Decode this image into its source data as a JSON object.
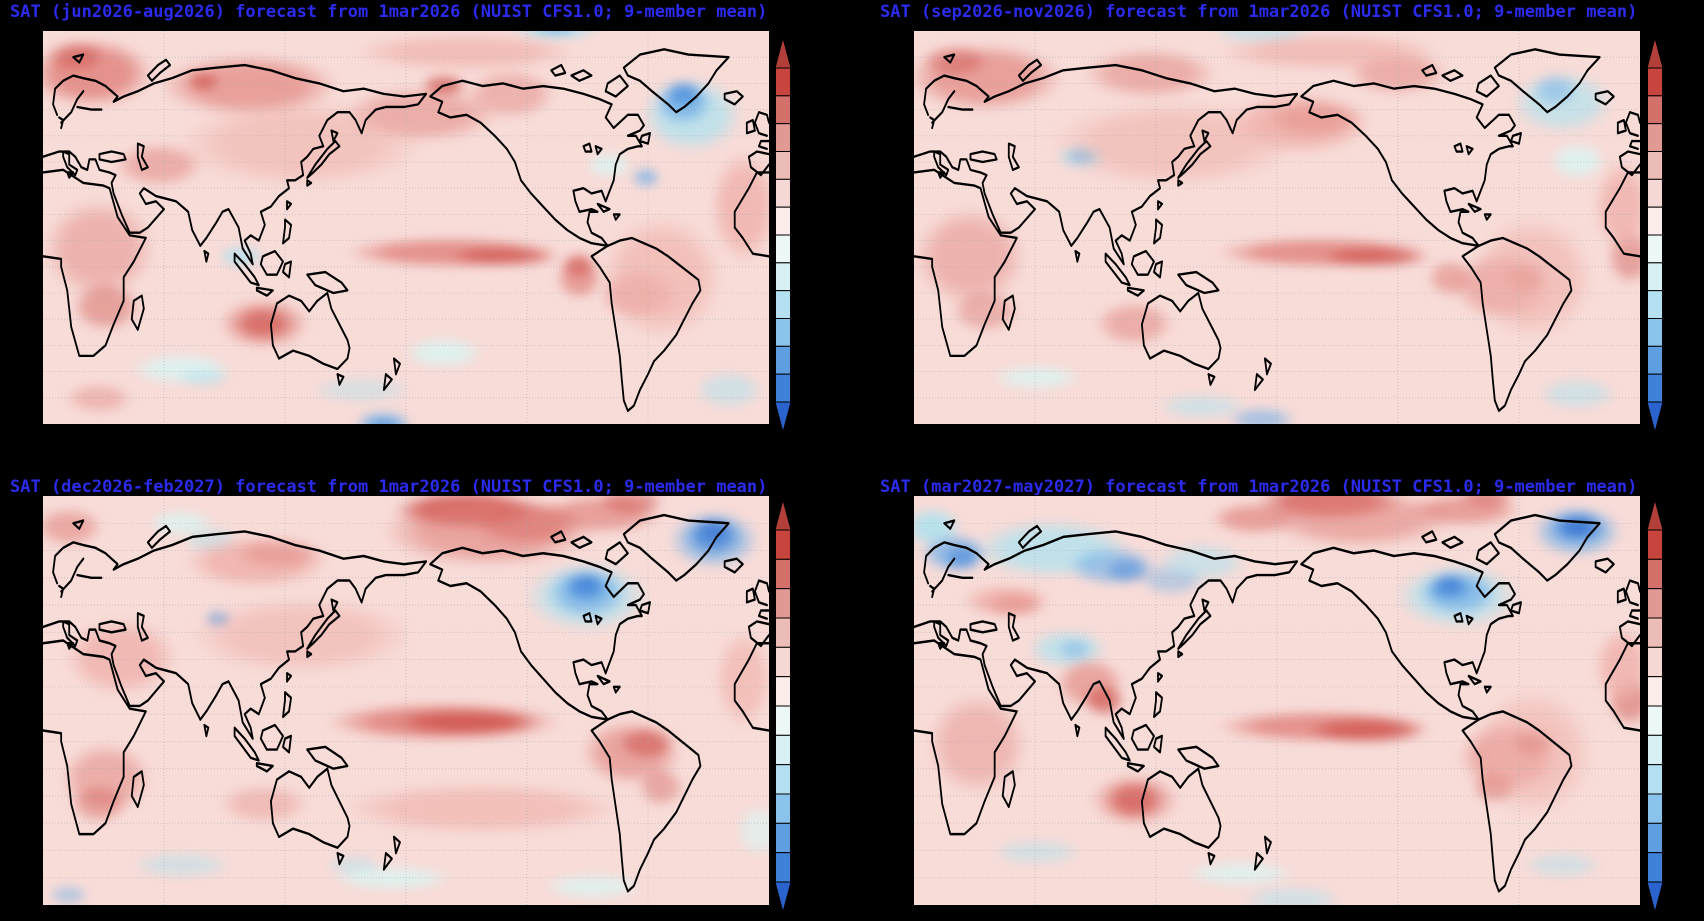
{
  "figure": {
    "background": "#000000",
    "title_color": "#2b2bef",
    "variable": "SAT",
    "init_label": "1mar2026",
    "model_label": "NUIST CFS1.0",
    "ensemble_label": "9-member mean"
  },
  "map_style": {
    "base_color": "#f8dcd8",
    "coastline_color": "#000000",
    "gridline_color": "#9fa8b4",
    "border_color": "#000000"
  },
  "palette": {
    "R1": "#f0b3ad",
    "R2": "#e0807a",
    "R3": "#cc4a44",
    "C1": "#ddf3f1",
    "C2": "#b2e2ee",
    "B1": "#77b2e8",
    "B2": "#3f83d9",
    "B3": "#2a67cf"
  },
  "colorbar": {
    "arrow_top": "#b23f39",
    "arrow_bottom": "#2a63cd",
    "segments": [
      "#c8443e",
      "#d4706a",
      "#e09a93",
      "#ecbcb6",
      "#f5d8d4",
      "#fcedea",
      "#ebf8f6",
      "#d7f0f4",
      "#b5e0f1",
      "#8ac3eb",
      "#5f9fe1",
      "#3f80d8"
    ]
  },
  "panels": [
    {
      "id": "panel-jja2026",
      "season": "jun2026-aug2026",
      "title": "SAT (jun2026-aug2026) forecast from 1mar2026 (NUIST CFS1.0; 9-member mean)",
      "features": [
        [
          8,
          13,
          11,
          11,
          "R2",
          0.8
        ],
        [
          6,
          9,
          5,
          5,
          "R3",
          0.45
        ],
        [
          29,
          16,
          16,
          10,
          "R2",
          0.65
        ],
        [
          23,
          15,
          3,
          3,
          "R3",
          0.6
        ],
        [
          55,
          16,
          4,
          3.5,
          "R3",
          0.65
        ],
        [
          52,
          23,
          14,
          9,
          "R2",
          0.5
        ],
        [
          70,
          2,
          8,
          4,
          "C2",
          0.9
        ],
        [
          70,
          2,
          4,
          2.5,
          "B1",
          0.7
        ],
        [
          64,
          18,
          8,
          8,
          "R2",
          0.45
        ],
        [
          88,
          23,
          9,
          12,
          "C2",
          0.8
        ],
        [
          87,
          20,
          5,
          7,
          "B1",
          0.8
        ],
        [
          87,
          18,
          3,
          4,
          "B2",
          0.6
        ],
        [
          82,
          38,
          2.5,
          3,
          "B1",
          0.75
        ],
        [
          77,
          35,
          4,
          4,
          "C1",
          0.9
        ],
        [
          17,
          35,
          8,
          7,
          "R2",
          0.5
        ],
        [
          9,
          55,
          10,
          16,
          "R2",
          0.45
        ],
        [
          10,
          69,
          6,
          8,
          "R3",
          0.4
        ],
        [
          28,
          57,
          4,
          3.5,
          "C2",
          0.8
        ],
        [
          56,
          56,
          19,
          5,
          "R2",
          0.8
        ],
        [
          63,
          57,
          10,
          3.2,
          "R3",
          0.6
        ],
        [
          73,
          62,
          4,
          7,
          "R2",
          0.7
        ],
        [
          73,
          59,
          3,
          4,
          "R3",
          0.5
        ],
        [
          81,
          66,
          7,
          8,
          "R2",
          0.5
        ],
        [
          31,
          73,
          8,
          8,
          "R2",
          0.65
        ],
        [
          31,
          73,
          5,
          5,
          "R3",
          0.55
        ],
        [
          20,
          84,
          9,
          5,
          "C1",
          0.9
        ],
        [
          23,
          86,
          5,
          3,
          "C2",
          0.55
        ],
        [
          55,
          80,
          7,
          5,
          "C1",
          0.9
        ],
        [
          44,
          89,
          9,
          4,
          "C2",
          0.45
        ],
        [
          47,
          97,
          5,
          4,
          "B1",
          0.8
        ],
        [
          47,
          98,
          3,
          2.5,
          "B2",
          0.55
        ],
        [
          9,
          91,
          6,
          5,
          "R2",
          0.4
        ],
        [
          95,
          45,
          6,
          18,
          "R1",
          0.85
        ],
        [
          93,
          89,
          6,
          6,
          "C2",
          0.55
        ],
        [
          58,
          8,
          20,
          6,
          "R1",
          0.75
        ],
        [
          84,
          62,
          11,
          20,
          "R1",
          0.7
        ],
        [
          36,
          30,
          22,
          14,
          "R1",
          0.6
        ]
      ]
    },
    {
      "id": "panel-son2026",
      "season": "sep2026-nov2026",
      "title": "SAT (sep2026-nov2026) forecast from 1mar2026 (NUIST CFS1.0; 9-member mean)",
      "features": [
        [
          11,
          14,
          14,
          11,
          "R2",
          0.65
        ],
        [
          7,
          10,
          6,
          5,
          "R3",
          0.4
        ],
        [
          33,
          13,
          12,
          8,
          "R2",
          0.5
        ],
        [
          24,
          33,
          4.5,
          4,
          "C2",
          0.9
        ],
        [
          24,
          33,
          2.5,
          2.2,
          "B1",
          0.75
        ],
        [
          48,
          3,
          9,
          4,
          "C2",
          0.6
        ],
        [
          53,
          25,
          13,
          10,
          "R1",
          0.9
        ],
        [
          55,
          24,
          9,
          6,
          "R2",
          0.4
        ],
        [
          66,
          13,
          9,
          7,
          "R2",
          0.5
        ],
        [
          88,
          20,
          9,
          10,
          "C2",
          0.7
        ],
        [
          87,
          17,
          4,
          5,
          "B1",
          0.5
        ],
        [
          90,
          34,
          5,
          6,
          "C1",
          0.9
        ],
        [
          56,
          56,
          19,
          5,
          "R2",
          0.8
        ],
        [
          63,
          57,
          10,
          3.4,
          "R3",
          0.6
        ],
        [
          80,
          64,
          9,
          11,
          "R2",
          0.5
        ],
        [
          83,
          62,
          4,
          5,
          "R3",
          0.35
        ],
        [
          9,
          57,
          10,
          16,
          "R2",
          0.45
        ],
        [
          11,
          70,
          6,
          7,
          "R3",
          0.3
        ],
        [
          31,
          73,
          7,
          7,
          "R2",
          0.5
        ],
        [
          73,
          62,
          4,
          6,
          "R2",
          0.55
        ],
        [
          48,
          96,
          6,
          4,
          "B1",
          0.6
        ],
        [
          40,
          93,
          8,
          4,
          "C2",
          0.55
        ],
        [
          97,
          57,
          4,
          9,
          "R3",
          0.4
        ],
        [
          96,
          45,
          5,
          15,
          "R1",
          0.85
        ],
        [
          90,
          90,
          7,
          5,
          "C2",
          0.55
        ],
        [
          18,
          86,
          8,
          4,
          "C1",
          0.85
        ],
        [
          57,
          8,
          20,
          6,
          "R1",
          0.75
        ],
        [
          36,
          30,
          22,
          14,
          "R1",
          0.6
        ],
        [
          84,
          62,
          11,
          20,
          "R1",
          0.65
        ]
      ]
    },
    {
      "id": "panel-djf2026-27",
      "season": "dec2026-feb2027",
      "title": "SAT (dec2026-feb2027) forecast from 1mar2026 (NUIST CFS1.0; 9-member mean)",
      "features": [
        [
          58,
          6,
          13,
          6,
          "R3",
          0.8
        ],
        [
          66,
          9,
          10,
          7,
          "R3",
          0.55
        ],
        [
          61,
          11,
          19,
          11,
          "R2",
          0.6
        ],
        [
          76,
          7,
          11,
          6,
          "R2",
          0.65
        ],
        [
          80,
          4,
          6,
          4,
          "R3",
          0.45
        ],
        [
          5,
          10,
          6,
          6,
          "R2",
          0.55
        ],
        [
          20,
          9,
          6,
          4,
          "C1",
          0.85
        ],
        [
          24,
          13,
          5,
          4,
          "C2",
          0.5
        ],
        [
          30,
          18,
          13,
          8,
          "R1",
          0.9
        ],
        [
          33,
          16,
          8,
          5,
          "R2",
          0.4
        ],
        [
          74,
          26,
          11,
          11,
          "C2",
          0.75
        ],
        [
          74,
          25,
          7,
          8,
          "B1",
          0.75
        ],
        [
          74,
          24,
          4,
          4.5,
          "B2",
          0.6
        ],
        [
          74,
          23,
          2.5,
          3,
          "B3",
          0.35
        ],
        [
          91,
          13,
          8,
          9,
          "B1",
          0.65
        ],
        [
          91,
          12,
          5,
          6,
          "B2",
          0.65
        ],
        [
          91,
          11,
          3,
          4,
          "B3",
          0.45
        ],
        [
          25,
          31,
          2.2,
          2.2,
          "B2",
          0.85
        ],
        [
          25,
          31,
          1.2,
          1.2,
          "C2",
          0.9
        ],
        [
          55,
          55,
          21,
          6,
          "R2",
          0.85
        ],
        [
          58,
          55,
          13,
          4,
          "R3",
          0.7
        ],
        [
          80,
          62,
          9,
          10,
          "R2",
          0.6
        ],
        [
          82,
          60,
          5,
          5,
          "R3",
          0.5
        ],
        [
          84,
          70,
          4,
          6,
          "R3",
          0.35
        ],
        [
          10,
          68,
          8,
          11,
          "R2",
          0.5
        ],
        [
          9,
          74,
          5,
          6,
          "R3",
          0.35
        ],
        [
          31,
          74,
          8,
          6,
          "R2",
          0.35
        ],
        [
          20,
          88,
          9,
          4,
          "C2",
          0.5
        ],
        [
          48,
          91,
          11,
          4,
          "C1",
          0.85
        ],
        [
          75,
          93,
          9,
          4,
          "C1",
          0.8
        ],
        [
          5,
          95,
          3.5,
          3,
          "B1",
          0.5
        ],
        [
          43,
          88,
          5,
          3,
          "C2",
          0.5
        ],
        [
          12,
          40,
          10,
          12,
          "R1",
          0.85
        ],
        [
          60,
          75,
          25,
          8,
          "R1",
          0.7
        ],
        [
          95,
          45,
          5,
          15,
          "R1",
          0.7
        ],
        [
          97,
          80,
          4,
          8,
          "C1",
          0.7
        ],
        [
          36,
          35,
          20,
          12,
          "R1",
          0.6
        ]
      ]
    },
    {
      "id": "panel-mam2027",
      "season": "mar2027-may2027",
      "title": "SAT (mar2027-may2027) forecast from 1mar2026 (NUIST CFS1.0; 9-member mean)",
      "features": [
        [
          4,
          10,
          5,
          6,
          "C2",
          0.9
        ],
        [
          7,
          16,
          6,
          6,
          "B1",
          0.75
        ],
        [
          8,
          17,
          3.5,
          4,
          "B2",
          0.55
        ],
        [
          20,
          15,
          14,
          9,
          "C2",
          0.8
        ],
        [
          28,
          19,
          8,
          6,
          "B1",
          0.65
        ],
        [
          30,
          20,
          4,
          4,
          "B2",
          0.45
        ],
        [
          36,
          22,
          6,
          5,
          "B1",
          0.45
        ],
        [
          40,
          18,
          8,
          6,
          "C2",
          0.6
        ],
        [
          14,
          27,
          8,
          5,
          "R1",
          0.95
        ],
        [
          15,
          28,
          5,
          3.5,
          "R2",
          0.45
        ],
        [
          22,
          38,
          7,
          6,
          "C2",
          0.75
        ],
        [
          23,
          38,
          3,
          3,
          "B1",
          0.55
        ],
        [
          25,
          46,
          6,
          8,
          "R2",
          0.6
        ],
        [
          27,
          50,
          3.5,
          5,
          "R3",
          0.6
        ],
        [
          47,
          8,
          8,
          5,
          "R2",
          0.65
        ],
        [
          57,
          4,
          13,
          6,
          "R3",
          0.7
        ],
        [
          61,
          8,
          17,
          9,
          "R2",
          0.55
        ],
        [
          75,
          6,
          10,
          5,
          "R2",
          0.65
        ],
        [
          78,
          3,
          5,
          3,
          "R3",
          0.45
        ],
        [
          74,
          26,
          11,
          10,
          "C2",
          0.75
        ],
        [
          74,
          25,
          7,
          7,
          "B1",
          0.75
        ],
        [
          73,
          24,
          4,
          4,
          "B2",
          0.6
        ],
        [
          73,
          23,
          2.5,
          2.8,
          "B3",
          0.4
        ],
        [
          90,
          11,
          8,
          8,
          "B1",
          0.7
        ],
        [
          90,
          10,
          5,
          5,
          "B2",
          0.7
        ],
        [
          90,
          10,
          3,
          3.2,
          "B3",
          0.55
        ],
        [
          56,
          56,
          19,
          5,
          "R2",
          0.8
        ],
        [
          62,
          57,
          11,
          4,
          "R3",
          0.65
        ],
        [
          31,
          73,
          8,
          8,
          "R2",
          0.55
        ],
        [
          31,
          73,
          5,
          5.5,
          "R3",
          0.6
        ],
        [
          81,
          63,
          9,
          11,
          "R2",
          0.6
        ],
        [
          84,
          60,
          4,
          4.5,
          "R3",
          0.5
        ],
        [
          79,
          70,
          4,
          5,
          "R3",
          0.4
        ],
        [
          97,
          50,
          4,
          8,
          "R3",
          0.45
        ],
        [
          96,
          42,
          5,
          12,
          "R1",
          0.85
        ],
        [
          18,
          85,
          8,
          4,
          "C2",
          0.5
        ],
        [
          45,
          90,
          10,
          4,
          "C1",
          0.8
        ],
        [
          88,
          88,
          7,
          4,
          "C2",
          0.5
        ],
        [
          52,
          96,
          9,
          4,
          "C2",
          0.55
        ],
        [
          10,
          60,
          9,
          16,
          "R2",
          0.4
        ],
        [
          84,
          62,
          11,
          20,
          "R1",
          0.6
        ]
      ]
    }
  ]
}
